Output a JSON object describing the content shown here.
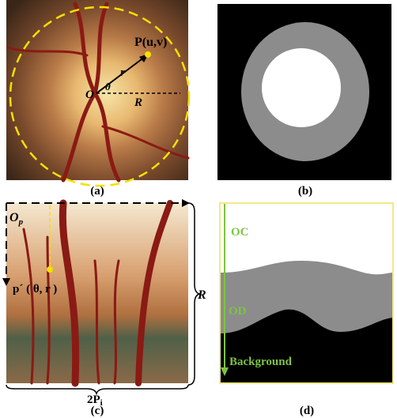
{
  "panels": [
    {
      "caption": "(a)",
      "labels": {
        "point": "P(u,v)",
        "radius": "r",
        "angle": "θ",
        "origin": "O",
        "extent": "R"
      }
    },
    {
      "caption": "(b)"
    },
    {
      "caption": "(c)",
      "labels": {
        "origin": {
          "main": "O",
          "sub": "p"
        },
        "point": "p´ ( θ, r )",
        "height": "R",
        "width": {
          "main": "2P",
          "sub": "i"
        }
      }
    },
    {
      "caption": "(d)",
      "labels": {
        "cup": "OC",
        "disc": "OD",
        "background": "Background"
      }
    }
  ]
}
